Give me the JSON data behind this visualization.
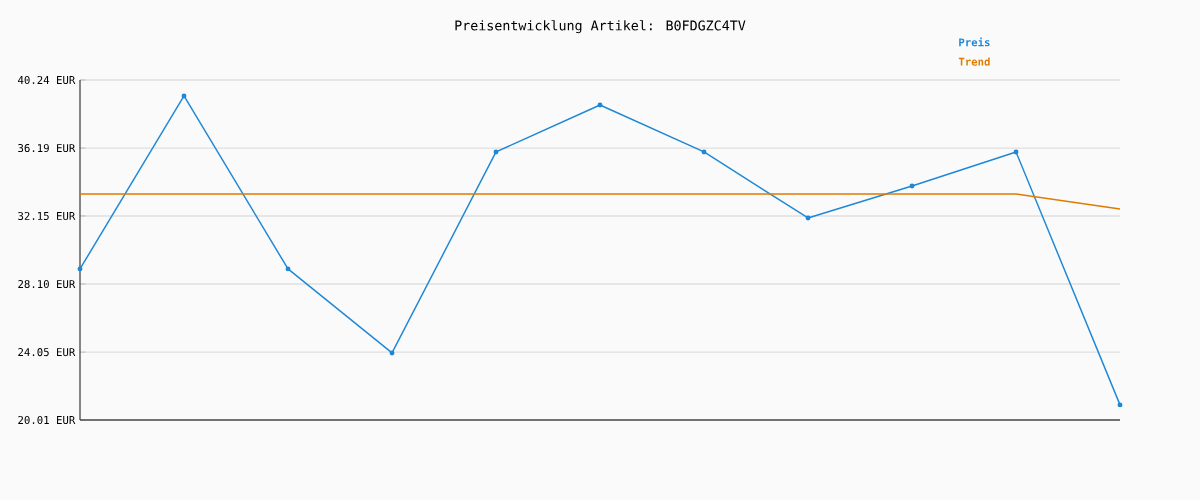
{
  "chart_data": {
    "type": "line",
    "title": "Preisentwicklung Artikel: B0FDGZC4TV",
    "categories": [
      null,
      null,
      null,
      null,
      null,
      null,
      null,
      null,
      null,
      null,
      null
    ],
    "series": [
      {
        "name": "Preis",
        "color": "#1e88d6",
        "marker": "circle",
        "values": [
          29.0,
          39.29,
          29.0,
          24.0,
          35.96,
          38.75,
          35.96,
          32.03,
          33.93,
          35.96,
          20.91
        ]
      },
      {
        "name": "Trend",
        "color": "#e07b00",
        "marker": "none",
        "values": [
          33.46,
          33.46,
          33.46,
          33.46,
          33.46,
          33.46,
          33.46,
          33.46,
          33.46,
          33.46,
          32.57
        ]
      }
    ],
    "ylim": [
      20.01,
      40.24
    ],
    "yticks": [
      {
        "value": 20.01,
        "label": "20.01 EUR"
      },
      {
        "value": 24.05,
        "label": "24.05 EUR"
      },
      {
        "value": 28.1,
        "label": "28.10 EUR"
      },
      {
        "value": 32.15,
        "label": "32.15 EUR"
      },
      {
        "value": 36.19,
        "label": "36.19 EUR"
      },
      {
        "value": 40.24,
        "label": "40.24 EUR"
      }
    ],
    "grid": "y",
    "legend": "top right",
    "tick_labels": "y"
  }
}
